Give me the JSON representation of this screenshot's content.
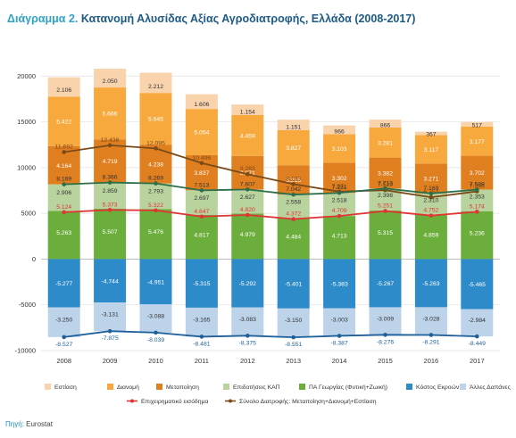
{
  "title_prefix": "Διάγραμμα 2.",
  "title_main": "Κατανομή Αλυσίδας Αξίας Αγροδιατροφής, Ελλάδα (2008-2017)",
  "source_label": "Πηγή:",
  "source_value": "Eurostat",
  "colors": {
    "estiasi": "#f9d3ac",
    "dianomi": "#f7a93e",
    "metapoiisi": "#e07f1f",
    "epidotiseis": "#b9d39e",
    "pa_georgias": "#6cae3c",
    "kostos_eksodon": "#2e8bc9",
    "alles_dapanes": "#bcd3ea",
    "line_profit": "#e03535",
    "line_total": "#7a4a18",
    "line_cost": "#1f5f9a",
    "line_subsidy": "#2d6e4a",
    "title": "#1d5a86"
  },
  "chart_data": {
    "type": "bar",
    "stacked": true,
    "categories": [
      "2008",
      "2009",
      "2010",
      "2011",
      "2012",
      "2013",
      "2014",
      "2015",
      "2016",
      "2017"
    ],
    "ylim": [
      -10000,
      21000
    ],
    "yticks": [
      -10000,
      -5000,
      0,
      5000,
      10000,
      15000,
      20000
    ],
    "ytick_labels": [
      "-10000",
      "-5000",
      "0",
      "5000",
      "10000",
      "15000",
      "20000"
    ],
    "grid": true,
    "legend_position": "bottom",
    "positive_series": [
      {
        "name": "ΠΑ Γεωργίας (Φυτική+Ζωική)",
        "color_key": "pa_georgias",
        "values": [
          5263,
          5507,
          5476,
          4817,
          4979,
          4484,
          4713,
          5315,
          4859,
          5236
        ],
        "labels": [
          "5.263",
          "5.507",
          "5.476",
          "4.817",
          "4.979",
          "4.484",
          "4.713",
          "5.315",
          "4.859",
          "5.236"
        ],
        "label_color": "#ffffff"
      },
      {
        "name": "Επιδοτήσεις ΚΑΠ",
        "color_key": "epidotiseis",
        "values": [
          2906,
          2859,
          2793,
          2697,
          2627,
          2558,
          2518,
          2398,
          2310,
          2353
        ],
        "labels": [
          "2.906",
          "2.859",
          "2.793",
          "2.697",
          "2.627",
          "2.558",
          "2.518",
          "2.398",
          "2.310",
          "2.353"
        ],
        "label_color": "#333333"
      },
      {
        "name": "Μεταποίηση",
        "color_key": "metapoiisi",
        "values": [
          4164,
          4719,
          4238,
          3837,
          3671,
          3215,
          3302,
          3382,
          3271,
          3702
        ],
        "labels": [
          "4.164",
          "4.719",
          "4.238",
          "3.837",
          "3.671",
          "3.215",
          "3.302",
          "3.382",
          "3.271",
          "3.702"
        ],
        "label_color": "#ffffff"
      },
      {
        "name": "Διανομή",
        "color_key": "dianomi",
        "values": [
          5422,
          5666,
          5645,
          5054,
          4459,
          3827,
          3103,
          3281,
          3117,
          3177
        ],
        "labels": [
          "5.422",
          "5.666",
          "5.645",
          "5.054",
          "4.459",
          "3.827",
          "3.103",
          "3.281",
          "3.117",
          "3.177"
        ],
        "label_color": "#ffffff"
      },
      {
        "name": "Εστίαση",
        "color_key": "estiasi",
        "values": [
          2106,
          2050,
          2212,
          1606,
          1154,
          1151,
          966,
          866,
          367,
          517
        ],
        "labels": [
          "2.106",
          "2.050",
          "2.212",
          "1.606",
          "1.154",
          "1.151",
          "966",
          "866",
          "367",
          "517"
        ],
        "label_color": "#333333"
      }
    ],
    "negative_series": [
      {
        "name": "Κόστος Εκροών",
        "color_key": "kostos_eksodon",
        "values": [
          -5277,
          -4744,
          -4951,
          -5315,
          -5292,
          -5401,
          -5383,
          -5267,
          -5263,
          -5465
        ],
        "labels": [
          "-5.277",
          "-4.744",
          "-4.951",
          "-5.315",
          "-5.292",
          "-5.401",
          "-5.383",
          "-5.267",
          "-5.263",
          "-5.465"
        ],
        "label_color": "#ffffff"
      },
      {
        "name": "Άλλες Δαπάνες",
        "color_key": "alles_dapanes",
        "values": [
          -3250,
          -3131,
          -3088,
          -3165,
          -3083,
          -3150,
          -3003,
          -3009,
          -3028,
          -2984
        ],
        "labels": [
          "-3.250",
          "-3.131",
          "-3.088",
          "-3.165",
          "-3.083",
          "-3.150",
          "-3.003",
          "-3.009",
          "-3.028",
          "-2.984"
        ],
        "label_color": "#333333"
      }
    ],
    "lines": [
      {
        "name": "Σύνολο Διατροφής: Μεταποίηση+Διανομή+Εστίαση",
        "color_key": "line_total",
        "values": [
          11692,
          12436,
          12095,
          10496,
          9283,
          8193,
          7371,
          7529,
          6754,
          7396
        ],
        "labels": [
          "11.692",
          "12.436",
          "12.095",
          "10.496",
          "9.283",
          "8.193",
          "7.371",
          "7.529",
          "6.754",
          "7.396"
        ],
        "label_side": "above",
        "in_legend": true
      },
      {
        "name": "Επιδοτήσεις ΚΑΠ + ΠΑ Γεωργίας",
        "color_key": "line_subsidy",
        "values": [
          8169,
          8366,
          8269,
          7513,
          7607,
          7042,
          7231,
          7713,
          7169,
          7589
        ],
        "labels": [
          "8.169",
          "8.366",
          "8.269",
          "7.513",
          "7.607",
          "7.042",
          "7.231",
          "7.713",
          "7.169",
          "7.589"
        ],
        "label_side": "above",
        "in_legend": false
      },
      {
        "name": "Επιχειρηματικό εισόδημα",
        "color_key": "line_profit",
        "values": [
          5124,
          5373,
          5322,
          4647,
          4820,
          4372,
          4709,
          5251,
          4752,
          5174
        ],
        "labels": [
          "5.124",
          "5.373",
          "5.322",
          "4.647",
          "4.820",
          "4.372",
          "4.709",
          "5.251",
          "4.752",
          "5.174"
        ],
        "label_side": "above",
        "in_legend": true
      },
      {
        "name": "Κόστος",
        "color_key": "line_cost",
        "values": [
          -8527,
          -7875,
          -8039,
          -8481,
          -8375,
          -8551,
          -8387,
          -8276,
          -8291,
          -8449
        ],
        "labels": [
          "-8.527",
          "-7.875",
          "-8.039",
          "-8.481",
          "-8.375",
          "-8.551",
          "-8.387",
          "-8.276",
          "-8.291",
          "-8.449"
        ],
        "label_side": "below",
        "in_legend": false
      }
    ],
    "legend_row1": [
      "Εστίαση",
      "Διανομή",
      "Μεταποίηση",
      "Επιδοτήσεις ΚΑΠ",
      "ΠΑ Γεωργίας (Φυτική+Ζωική)",
      "Κόστος Εκροών",
      "Άλλες Δαπάνες"
    ],
    "legend_row1_keys": [
      "estiasi",
      "dianomi",
      "metapoiisi",
      "epidotiseis",
      "pa_georgias",
      "kostos_eksodon",
      "alles_dapanes"
    ],
    "legend_row2": [
      "Επιχειρηματικό εισόδημα",
      "Σύνολο Διατροφής: Μεταποίηση+Διανομή+Εστίαση"
    ],
    "legend_row2_keys": [
      "line_profit",
      "line_total"
    ]
  }
}
